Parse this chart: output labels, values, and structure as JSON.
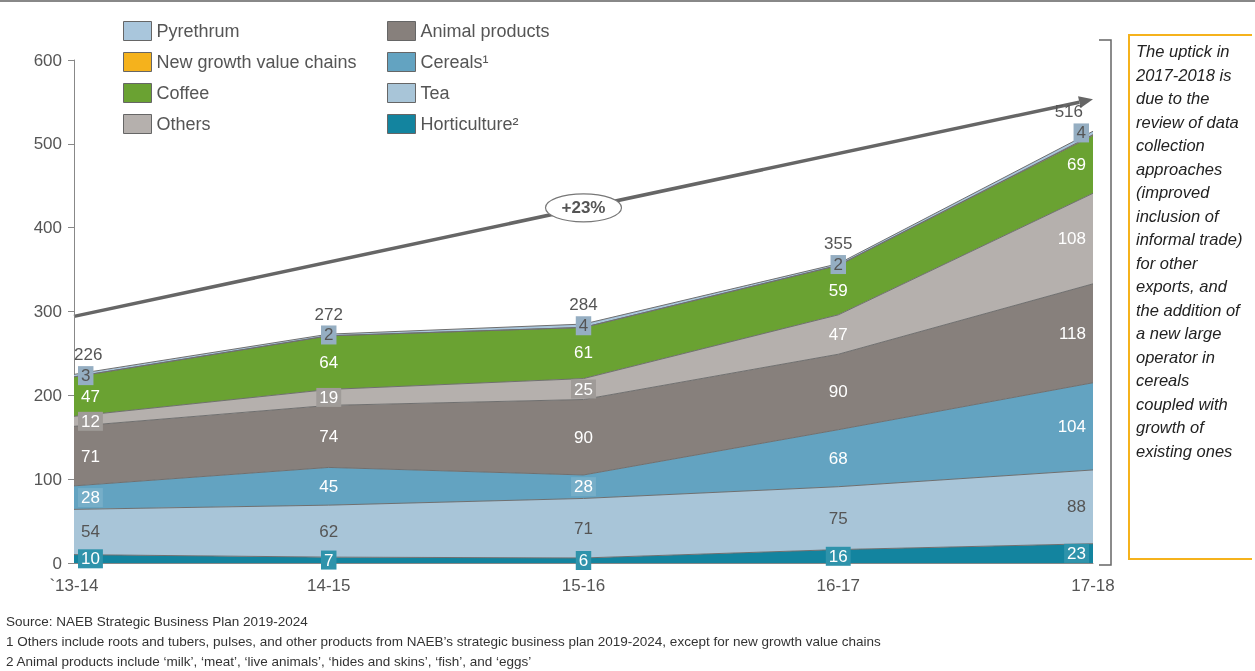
{
  "chart_data": {
    "type": "area",
    "stacked": true,
    "categories": [
      "`13-14",
      "14-15",
      "15-16",
      "16-17",
      "17-18"
    ],
    "series": [
      {
        "name": "Horticulture²",
        "color": "#13849f",
        "values": [
          10,
          7,
          6,
          16,
          23
        ],
        "value_labels": [
          "10",
          "7",
          "6",
          "16",
          "23"
        ]
      },
      {
        "name": "Tea",
        "color": "#a8c5d8",
        "values": [
          54,
          62,
          71,
          75,
          88
        ],
        "value_labels": [
          "54",
          "62",
          "71",
          "75",
          "88"
        ]
      },
      {
        "name": "Cereals¹",
        "color": "#63a3c1",
        "values": [
          28,
          45,
          28,
          68,
          104
        ],
        "value_labels": [
          "28",
          "45",
          "28",
          "68",
          "104"
        ]
      },
      {
        "name": "Animal products",
        "color": "#87807c",
        "values": [
          71,
          74,
          90,
          90,
          118
        ],
        "value_labels": [
          "71",
          "74",
          "90",
          "90",
          "118"
        ]
      },
      {
        "name": "Others",
        "color": "#b5b0ad",
        "values": [
          12,
          19,
          25,
          47,
          108
        ],
        "value_labels": [
          "12",
          "19",
          "25",
          "47",
          "108"
        ]
      },
      {
        "name": "Coffee",
        "color": "#6aa232",
        "values": [
          47,
          64,
          61,
          59,
          69
        ],
        "value_labels": [
          "47",
          "64",
          "61",
          "59",
          "69"
        ]
      },
      {
        "name": "New growth value chains",
        "color": "#f5b21c",
        "values": [
          0,
          0,
          0,
          0,
          1
        ],
        "value_labels": [
          null,
          null,
          null,
          null,
          null
        ]
      },
      {
        "name": "Pyrethrum",
        "color": "#a9c6dc",
        "values": [
          3,
          2,
          4,
          2,
          4
        ],
        "value_labels": [
          "3",
          "2",
          "4",
          "2",
          "4"
        ]
      }
    ],
    "totals": [
      "226",
      "272",
      "284",
      "355",
      "516"
    ],
    "ylim": [
      0,
      600
    ],
    "yticks": [
      0,
      100,
      200,
      300,
      400,
      500,
      600
    ],
    "grid": false,
    "legend": "top left",
    "annotations": [
      "+23%",
      "The uptick in 2017-2018 is due to the review of data collection approaches (improved inclusion of informal trade) for other exports, and the addition of a new large operator in cereals coupled with growth of existing ones",
      "Source: NAEB Strategic Business Plan 2019-2024",
      "1 Others include roots and tubers, pulses, and other products from NAEB’s strategic business plan 2019-2024, except for new growth value chains",
      "2 Animal products include ‘milk’, ‘meat’, ‘live animals’, ‘hides and skins’, ‘fish’, and ‘eggs’"
    ]
  }
}
